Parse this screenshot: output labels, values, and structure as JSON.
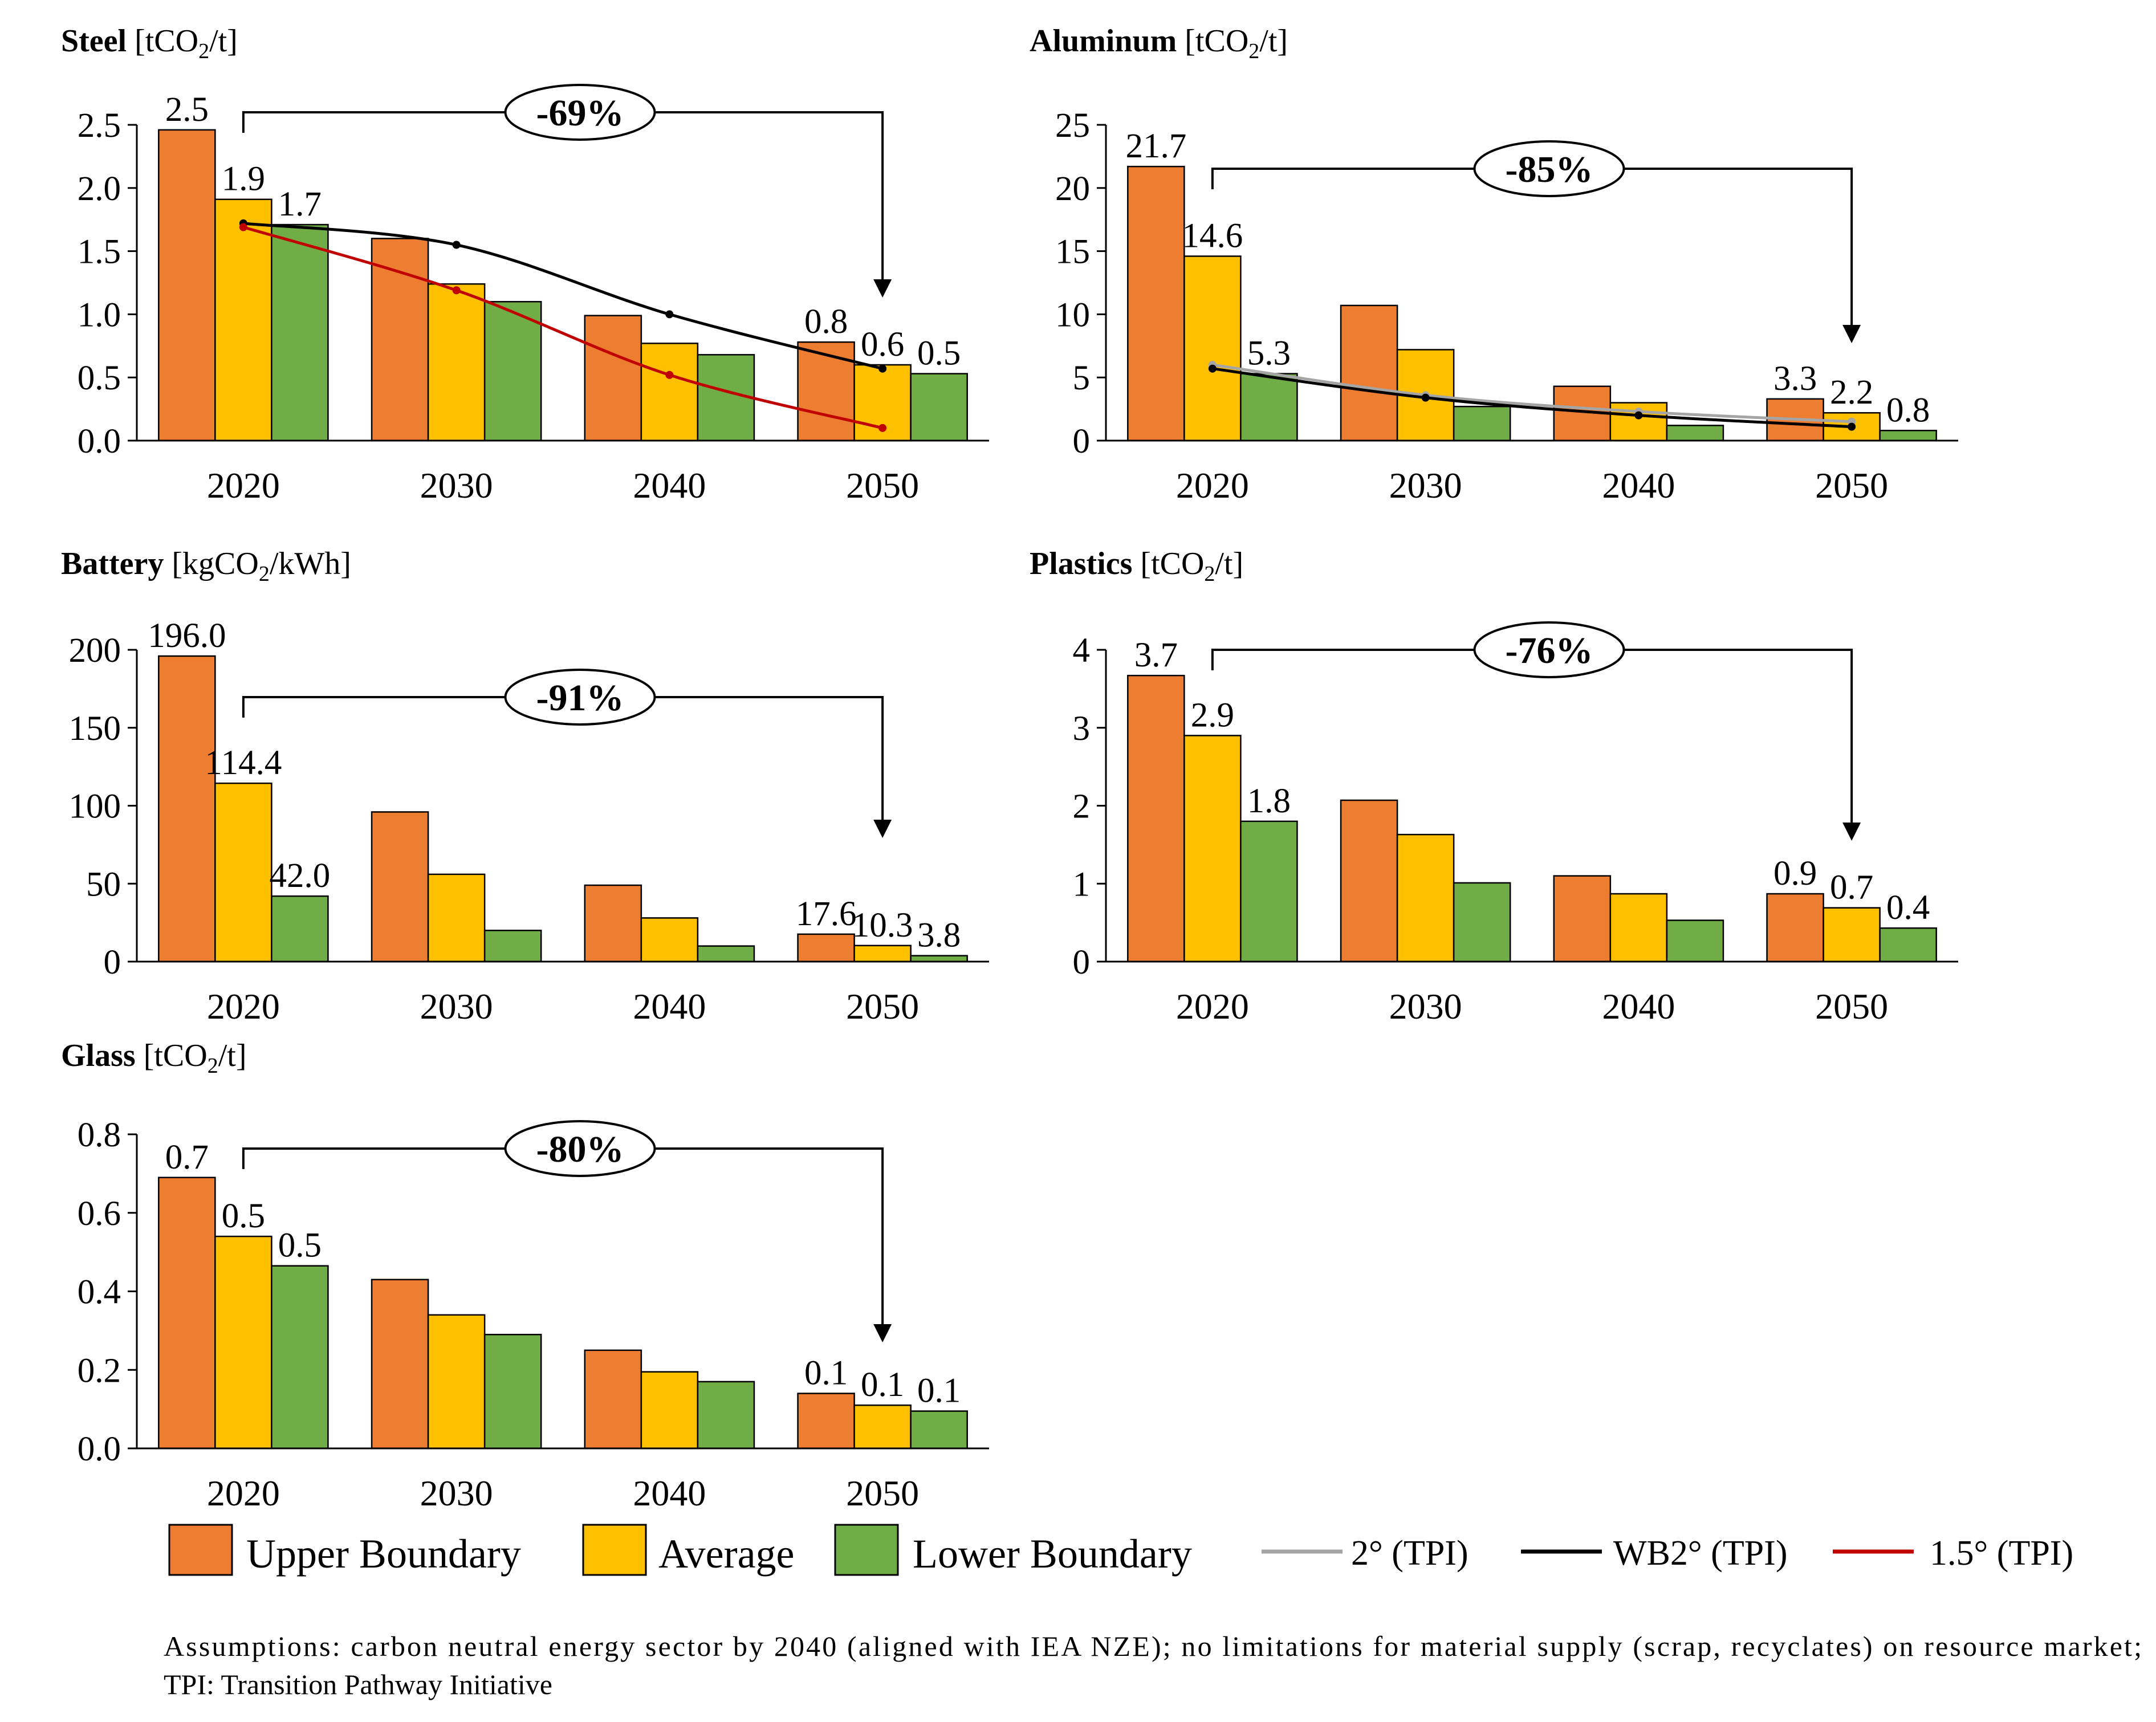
{
  "colors": {
    "upper": "#ED7D31",
    "average": "#FFC000",
    "lower": "#70AD47",
    "tpi_2": "#A5A5A5",
    "tpi_wb2": "#000000",
    "tpi_15": "#C00000"
  },
  "legend": {
    "upper": "Upper Boundary",
    "average": "Average",
    "lower": "Lower Boundary",
    "tpi_2": "2° (TPI)",
    "tpi_wb2": "WB2° (TPI)",
    "tpi_15": "1.5° (TPI)"
  },
  "footnote": {
    "line1": "Assumptions: carbon neutral energy sector by 2040 (aligned with IEA NZE); no limitations for material supply (scrap, recyclates) on resource market;",
    "line2": "TPI: Transition Pathway Initiative"
  },
  "chart_data": [
    {
      "type": "bar",
      "title": "Steel",
      "unit_pre": "[tCO",
      "unit_sub": "2",
      "unit_post": "/t]",
      "categories": [
        "2020",
        "2030",
        "2040",
        "2050"
      ],
      "ylim": [
        0,
        2.5
      ],
      "yticks": [
        "0.0",
        "0.5",
        "1.0",
        "1.5",
        "2.0",
        "2.5"
      ],
      "reduction": "-69%",
      "series": [
        {
          "name": "Upper Boundary",
          "values": [
            2.46,
            1.6,
            0.99,
            0.78
          ]
        },
        {
          "name": "Average",
          "values": [
            1.91,
            1.24,
            0.77,
            0.6
          ]
        },
        {
          "name": "Lower Boundary",
          "values": [
            1.71,
            1.1,
            0.68,
            0.53
          ]
        }
      ],
      "labels": {
        "2020": [
          "2.5",
          "1.9",
          "1.7"
        ],
        "2050": [
          "0.8",
          "0.6",
          "0.5"
        ]
      },
      "lines": [
        {
          "name": "WB2° (TPI)",
          "x": [
            2020,
            2030,
            2040,
            2050
          ],
          "values": [
            1.72,
            1.55,
            1.0,
            0.57
          ]
        },
        {
          "name": "1.5° (TPI)",
          "x": [
            2020,
            2030,
            2040,
            2050
          ],
          "values": [
            1.69,
            1.19,
            0.52,
            0.1
          ]
        }
      ]
    },
    {
      "type": "bar",
      "title": "Aluminum",
      "unit_pre": "[tCO",
      "unit_sub": "2",
      "unit_post": "/t]",
      "categories": [
        "2020",
        "2030",
        "2040",
        "2050"
      ],
      "ylim": [
        0,
        25
      ],
      "yticks": [
        "0",
        "5",
        "10",
        "15",
        "20",
        "25"
      ],
      "reduction": "-85%",
      "series": [
        {
          "name": "Upper Boundary",
          "values": [
            21.7,
            10.7,
            4.3,
            3.3
          ]
        },
        {
          "name": "Average",
          "values": [
            14.6,
            7.2,
            3.0,
            2.2
          ]
        },
        {
          "name": "Lower Boundary",
          "values": [
            5.3,
            2.7,
            1.2,
            0.8
          ]
        }
      ],
      "labels": {
        "2020": [
          "21.7",
          "14.6",
          "5.3"
        ],
        "2050": [
          "3.3",
          "2.2",
          "0.8"
        ]
      },
      "lines": [
        {
          "name": "2° (TPI)",
          "x": [
            2020,
            2030,
            2040,
            2050
          ],
          "values": [
            6.0,
            3.6,
            2.3,
            1.5
          ]
        },
        {
          "name": "WB2° (TPI)",
          "x": [
            2020,
            2030,
            2040,
            2050
          ],
          "values": [
            5.7,
            3.4,
            2.0,
            1.1
          ]
        }
      ]
    },
    {
      "type": "bar",
      "title": "Battery",
      "unit_pre": "[kgCO",
      "unit_sub": "2",
      "unit_post": "/kWh]",
      "categories": [
        "2020",
        "2030",
        "2040",
        "2050"
      ],
      "ylim": [
        0,
        200
      ],
      "yticks": [
        "0",
        "50",
        "100",
        "150",
        "200"
      ],
      "reduction": "-91%",
      "series": [
        {
          "name": "Upper Boundary",
          "values": [
            196.0,
            96.0,
            49.0,
            17.6
          ]
        },
        {
          "name": "Average",
          "values": [
            114.4,
            56.0,
            28.0,
            10.3
          ]
        },
        {
          "name": "Lower Boundary",
          "values": [
            42.0,
            20.0,
            10.0,
            3.8
          ]
        }
      ],
      "labels": {
        "2020": [
          "196.0",
          "114.4",
          "42.0"
        ],
        "2050": [
          "17.6",
          "10.3",
          "3.8"
        ]
      },
      "lines": []
    },
    {
      "type": "bar",
      "title": "Plastics",
      "unit_pre": "[tCO",
      "unit_sub": "2",
      "unit_post": "/t]",
      "categories": [
        "2020",
        "2030",
        "2040",
        "2050"
      ],
      "ylim": [
        0,
        4
      ],
      "yticks": [
        "0",
        "1",
        "2",
        "3",
        "4"
      ],
      "reduction": "-76%",
      "series": [
        {
          "name": "Upper Boundary",
          "values": [
            3.67,
            2.07,
            1.1,
            0.87
          ]
        },
        {
          "name": "Average",
          "values": [
            2.9,
            1.63,
            0.87,
            0.69
          ]
        },
        {
          "name": "Lower Boundary",
          "values": [
            1.8,
            1.01,
            0.53,
            0.43
          ]
        }
      ],
      "labels": {
        "2020": [
          "3.7",
          "2.9",
          "1.8"
        ],
        "2050": [
          "0.9",
          "0.7",
          "0.4"
        ]
      },
      "lines": []
    },
    {
      "type": "bar",
      "title": "Glass",
      "unit_pre": "[tCO",
      "unit_sub": "2",
      "unit_post": "/t]",
      "categories": [
        "2020",
        "2030",
        "2040",
        "2050"
      ],
      "ylim": [
        0,
        0.8
      ],
      "yticks": [
        "0.0",
        "0.2",
        "0.4",
        "0.6",
        "0.8"
      ],
      "reduction": "-80%",
      "series": [
        {
          "name": "Upper Boundary",
          "values": [
            0.69,
            0.43,
            0.25,
            0.14
          ]
        },
        {
          "name": "Average",
          "values": [
            0.54,
            0.34,
            0.195,
            0.11
          ]
        },
        {
          "name": "Lower Boundary",
          "values": [
            0.465,
            0.29,
            0.17,
            0.095
          ]
        }
      ],
      "labels": {
        "2020": [
          "0.7",
          "0.5",
          "0.5"
        ],
        "2050": [
          "0.1",
          "0.1",
          "0.1"
        ]
      },
      "lines": []
    }
  ]
}
